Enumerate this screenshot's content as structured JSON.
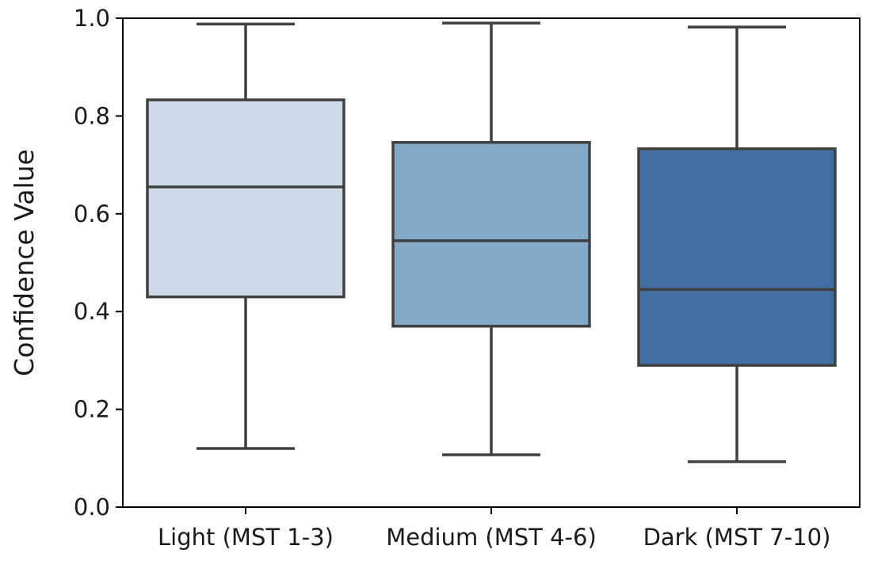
{
  "chart_data": {
    "type": "box",
    "ylabel": "Confidence Value",
    "xlabel": "",
    "ylim": [
      0.0,
      1.0
    ],
    "yticks": [
      "0.0",
      "0.2",
      "0.4",
      "0.6",
      "0.8",
      "1.0"
    ],
    "grid": false,
    "categories": [
      "Light (MST 1-3)",
      "Medium (MST 4-6)",
      "Dark (MST 7-10)"
    ],
    "boxes": [
      {
        "category": "Light (MST 1-3)",
        "whisker_low": 0.12,
        "q1": 0.43,
        "median": 0.655,
        "q3": 0.833,
        "whisker_high": 0.988,
        "color": "#cddbe9"
      },
      {
        "category": "Medium (MST 4-6)",
        "whisker_low": 0.107,
        "q1": 0.37,
        "median": 0.545,
        "q3": 0.746,
        "whisker_high": 0.99,
        "color": "#84a9c6"
      },
      {
        "category": "Dark (MST 7-10)",
        "whisker_low": 0.093,
        "q1": 0.29,
        "median": 0.445,
        "q3": 0.733,
        "whisker_high": 0.982,
        "color": "#436ea0"
      }
    ],
    "line_color": "#404040"
  }
}
